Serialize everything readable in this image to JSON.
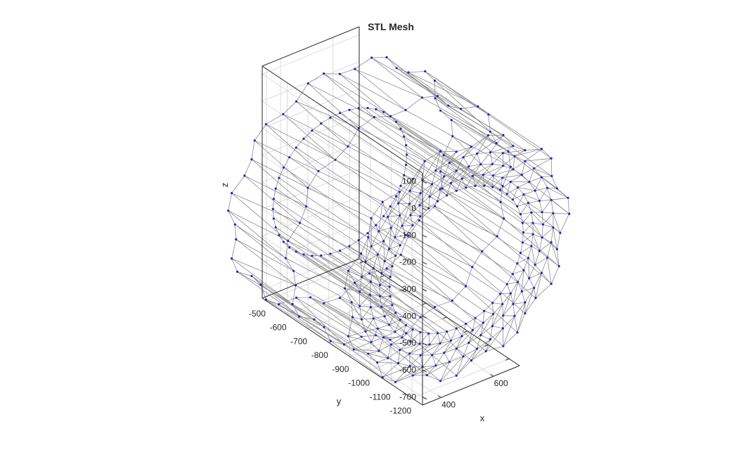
{
  "chart_data": {
    "type": "scatter",
    "title": "STL Mesh",
    "xlabel": "x",
    "ylabel": "y",
    "zlabel": "z",
    "x_ticks": [
      "400",
      "600"
    ],
    "y_ticks": [
      "-500",
      "-600",
      "-700",
      "-800",
      "-900",
      "-1000",
      "-1100",
      "-1200"
    ],
    "z_ticks": [
      "100",
      "0",
      "-100",
      "-200",
      "-300",
      "-400",
      "-500",
      "-600",
      "-700"
    ],
    "xlim": [
      330,
      700
    ],
    "ylim": [
      -1250,
      -480
    ],
    "zlim": [
      -730,
      130
    ],
    "grid": true,
    "view": "3d",
    "mesh": {
      "description_shape": "tire",
      "edge_color": "#8c8c8c",
      "vertex_color": "#1f1fd6",
      "center_xz": [
        515,
        -300
      ],
      "outer_radius": 430,
      "inner_radius": 255,
      "rim_radius": 330,
      "y_range": [
        -1180,
        -620
      ]
    }
  }
}
